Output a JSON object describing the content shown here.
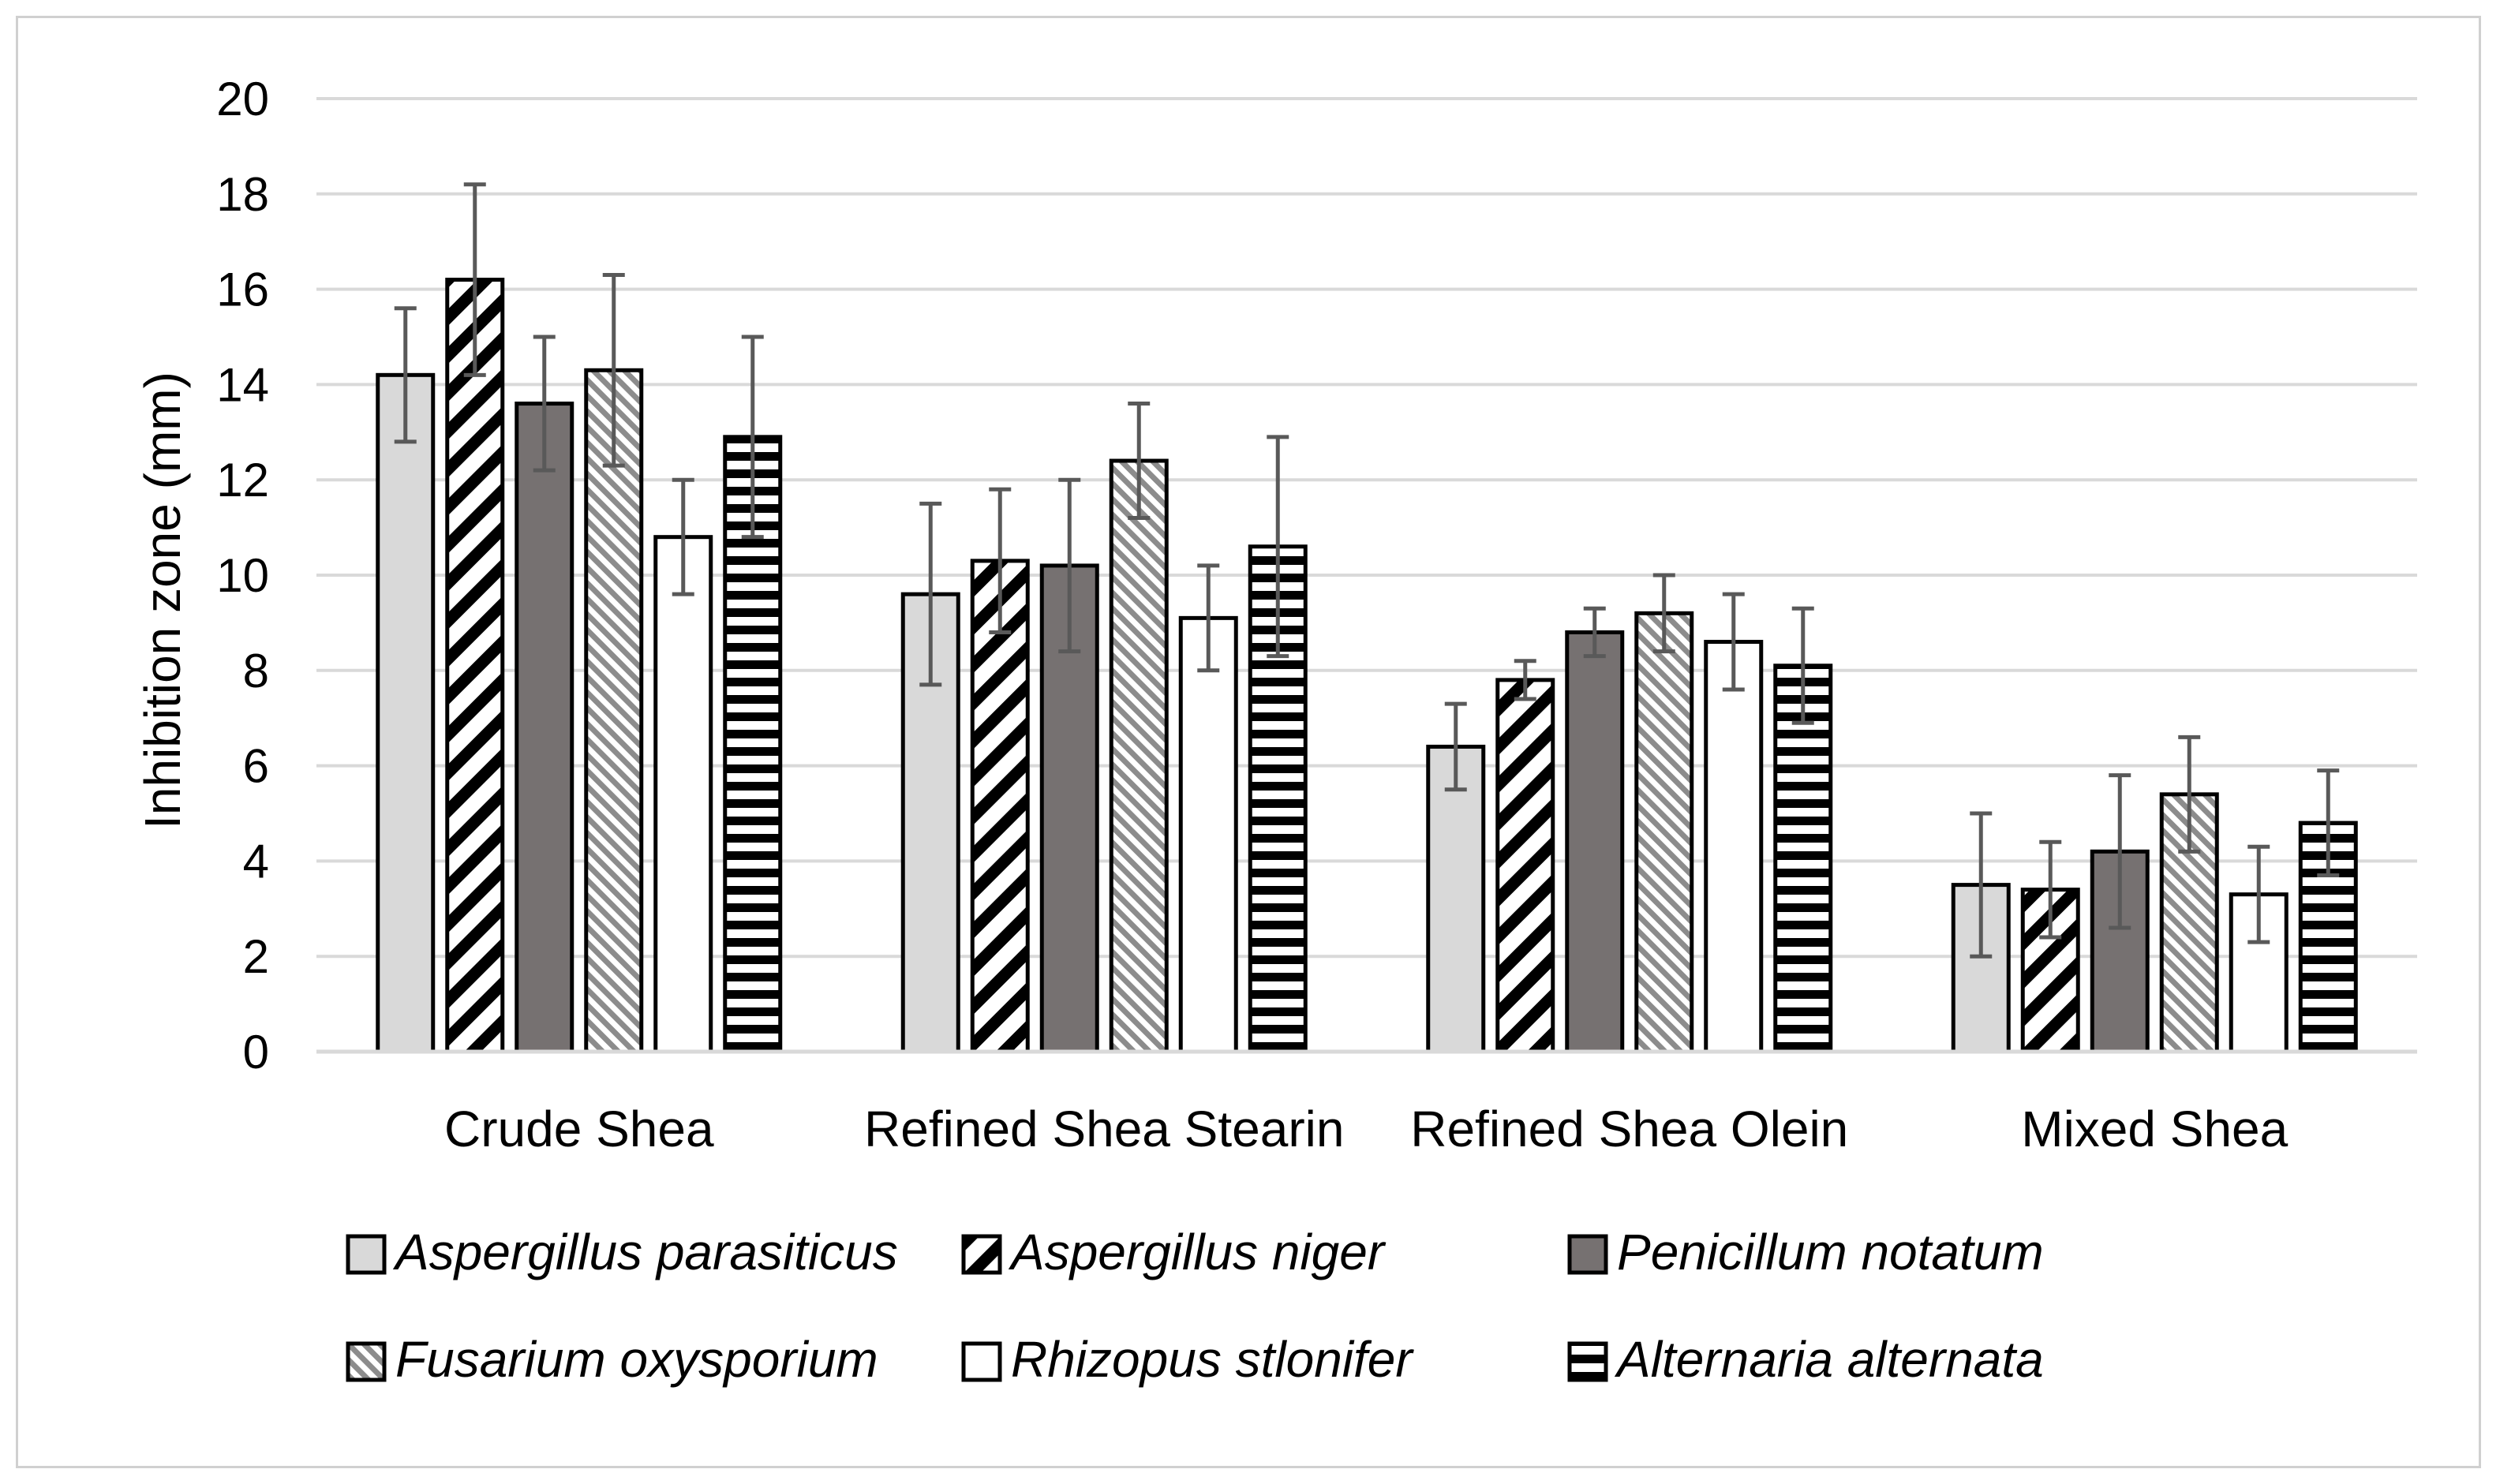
{
  "chart_data": {
    "type": "bar",
    "title": "",
    "xlabel": "",
    "ylabel": "Inhibition zone (mm)",
    "ylim": [
      0,
      20
    ],
    "yticks": [
      0,
      2,
      4,
      6,
      8,
      10,
      12,
      14,
      16,
      18,
      20
    ],
    "grid": true,
    "legend_position": "bottom",
    "categories": [
      "Crude Shea",
      "Refined Shea Stearin",
      "Refined Shea Olein",
      "Mixed Shea"
    ],
    "series": [
      {
        "name": "Aspergillus parasiticus",
        "pattern": "solid-light",
        "values": [
          14.2,
          9.6,
          6.4,
          3.5
        ],
        "errors": [
          1.4,
          1.9,
          0.9,
          1.5
        ]
      },
      {
        "name": "Aspergillus niger",
        "pattern": "wide-diagonal",
        "values": [
          16.2,
          10.3,
          7.8,
          3.4
        ],
        "errors": [
          2.0,
          1.5,
          0.4,
          1.0
        ]
      },
      {
        "name": "Penicillum notatum",
        "pattern": "solid-dark",
        "values": [
          13.6,
          10.2,
          8.8,
          4.2
        ],
        "errors": [
          1.4,
          1.8,
          0.5,
          1.6
        ]
      },
      {
        "name": "Fusarium oxysporium",
        "pattern": "light-diagonal",
        "values": [
          14.3,
          12.4,
          9.2,
          5.4
        ],
        "errors": [
          2.0,
          1.2,
          0.8,
          1.2
        ]
      },
      {
        "name": "Rhizopus stlonifer",
        "pattern": "white",
        "values": [
          10.8,
          9.1,
          8.6,
          3.3
        ],
        "errors": [
          1.2,
          1.1,
          1.0,
          1.0
        ]
      },
      {
        "name": "Alternaria alternata",
        "pattern": "horizontal-stripes",
        "values": [
          12.9,
          10.6,
          8.1,
          4.8
        ],
        "errors": [
          2.1,
          2.3,
          1.2,
          1.1
        ]
      }
    ],
    "colors": {
      "solid_light": "#d9d9d9",
      "solid_dark": "#767171",
      "hatch_dark": "#000000",
      "hatch_light": "#7f7f7f",
      "error_bar": "#595959",
      "grid": "#d9d9d9"
    }
  }
}
